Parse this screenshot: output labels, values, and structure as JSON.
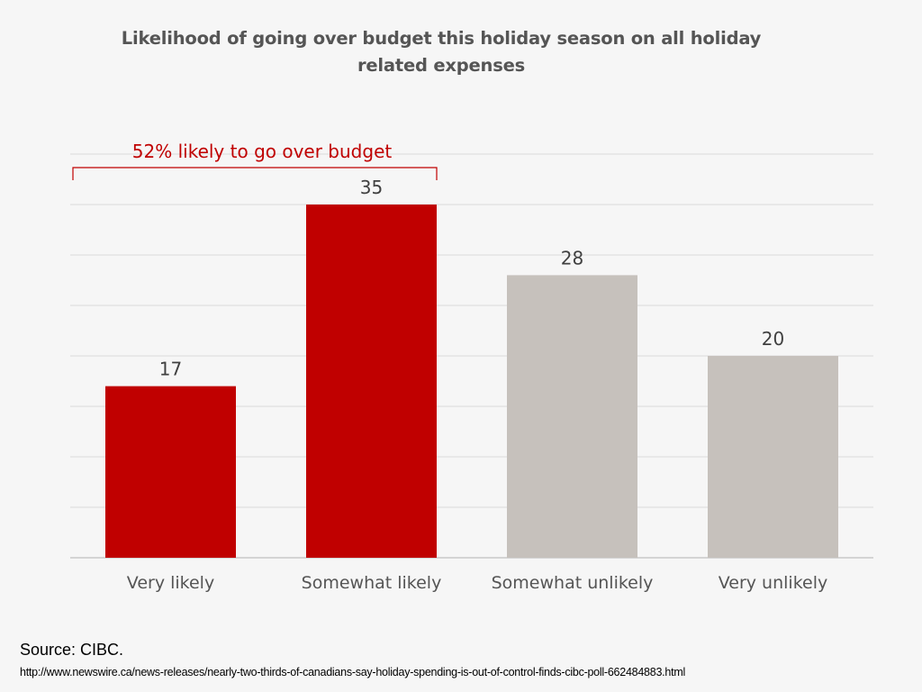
{
  "chart_data": {
    "type": "bar",
    "title_lines": [
      "Likelihood of going over budget this holiday season on all holiday",
      "related expenses"
    ],
    "categories": [
      "Very likely",
      "Somewhat likely",
      "Somewhat unlikely",
      "Very unlikely"
    ],
    "values": [
      17,
      35,
      28,
      20
    ],
    "bar_colors": [
      "#c00000",
      "#c00000",
      "#c6c1bc",
      "#c6c1bc"
    ],
    "ylim": [
      0,
      40
    ],
    "grid_step": 5,
    "grid": true,
    "annotation": {
      "text": "52% likely to go over budget",
      "color": "#c00000",
      "spans_categories": [
        0,
        1
      ]
    }
  },
  "source": {
    "label": "Source:  CIBC.",
    "url": "http://www.newswire.ca/news-releases/nearly-two-thirds-of-canadians-say-holiday-spending-is-out-of-control-finds-cibc-poll-662484883.html"
  },
  "colors": {
    "background": "#f6f6f6",
    "gridline": "#d9d9d9",
    "axis": "#bfbfbf",
    "text": "#404040"
  }
}
